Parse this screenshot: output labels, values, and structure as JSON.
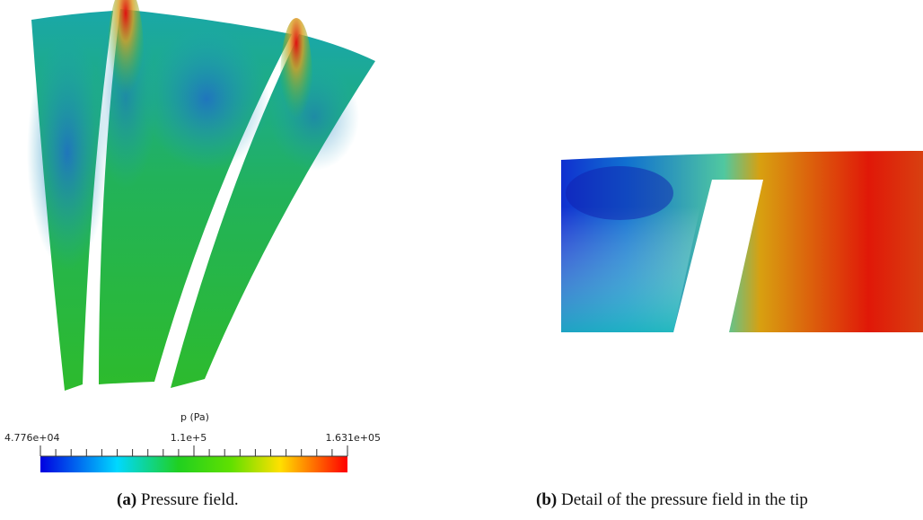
{
  "figure_a": {
    "colorbar": {
      "title": "p (Pa)",
      "min_label": "4.776e+04",
      "mid_label": "1.1e+5",
      "max_label": "1.631e+05"
    },
    "caption": {
      "label": "(a)",
      "text": "Pressure field."
    }
  },
  "figure_b": {
    "caption": {
      "label": "(b)",
      "text": "Detail of the pressure field in the tip"
    }
  }
}
